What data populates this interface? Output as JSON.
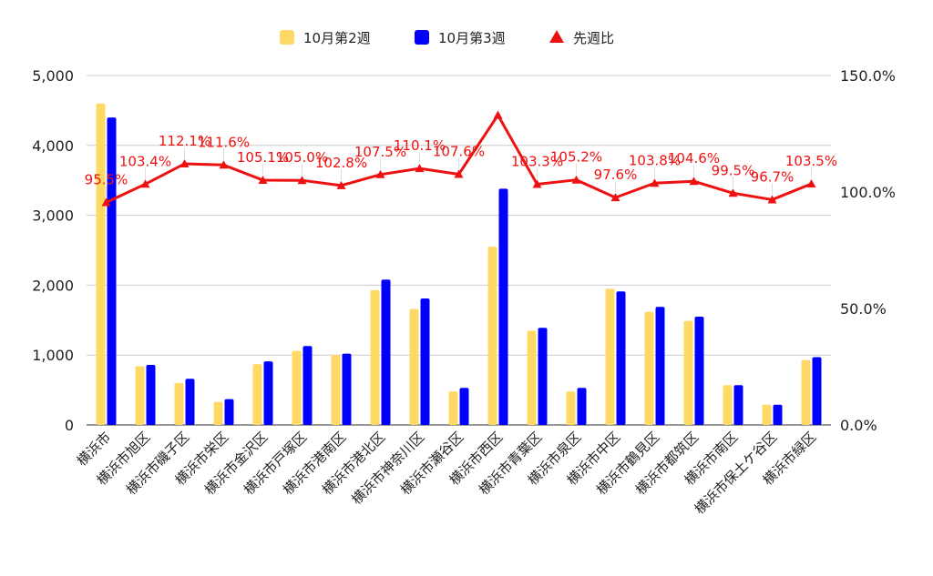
{
  "chart_data": {
    "type": "bar",
    "categories": [
      "横浜市",
      "横浜市旭区",
      "横浜市磯子区",
      "横浜市栄区",
      "横浜市金沢区",
      "横浜市戸塚区",
      "横浜市港南区",
      "横浜市港北区",
      "横浜市神奈川区",
      "横浜市瀬谷区",
      "横浜市西区",
      "横浜市青葉区",
      "横浜市泉区",
      "横浜市中区",
      "横浜市鶴見区",
      "横浜市都筑区",
      "横浜市南区",
      "横浜市保土ケ谷区",
      "横浜市緑区"
    ],
    "series": [
      {
        "name": "10月第2週",
        "type": "bar",
        "axis": "left",
        "color": "#ffd966",
        "values": [
          4600,
          840,
          600,
          330,
          870,
          1060,
          1000,
          1930,
          1660,
          480,
          2550,
          1350,
          480,
          1950,
          1620,
          1490,
          570,
          290,
          930
        ]
      },
      {
        "name": "10月第3週",
        "type": "bar",
        "axis": "left",
        "color": "#0000ff",
        "values": [
          4400,
          860,
          660,
          370,
          910,
          1130,
          1020,
          2080,
          1810,
          530,
          3380,
          1390,
          530,
          1910,
          1690,
          1550,
          570,
          290,
          970
        ]
      },
      {
        "name": "先週比",
        "type": "line",
        "axis": "right",
        "color": "#ee1111",
        "values": [
          95.5,
          103.4,
          112.1,
          111.6,
          105.1,
          105.0,
          102.8,
          107.5,
          110.1,
          107.6,
          133.0,
          103.3,
          105.2,
          97.6,
          103.8,
          104.6,
          99.5,
          96.7,
          103.5
        ],
        "labels": [
          "95.5%",
          "103.4%",
          "112.1%",
          "111.6%",
          "105.1%",
          "105.0%",
          "102.8%",
          "107.5%",
          "110.1%",
          "107.6%",
          "",
          "103.3%",
          "105.2%",
          "97.6%",
          "103.8%",
          "104.6%",
          "99.5%",
          "96.7%",
          "103.5%"
        ]
      }
    ],
    "left_axis": {
      "min": 0,
      "max": 5000,
      "ticks": [
        "0",
        "1,000",
        "2,000",
        "3,000",
        "4,000",
        "5,000"
      ]
    },
    "right_axis": {
      "min": 0,
      "max": 150,
      "ticks": [
        "0.0%",
        "50.0%",
        "100.0%",
        "150.0%"
      ]
    },
    "legend_position": "top",
    "grid": true
  }
}
